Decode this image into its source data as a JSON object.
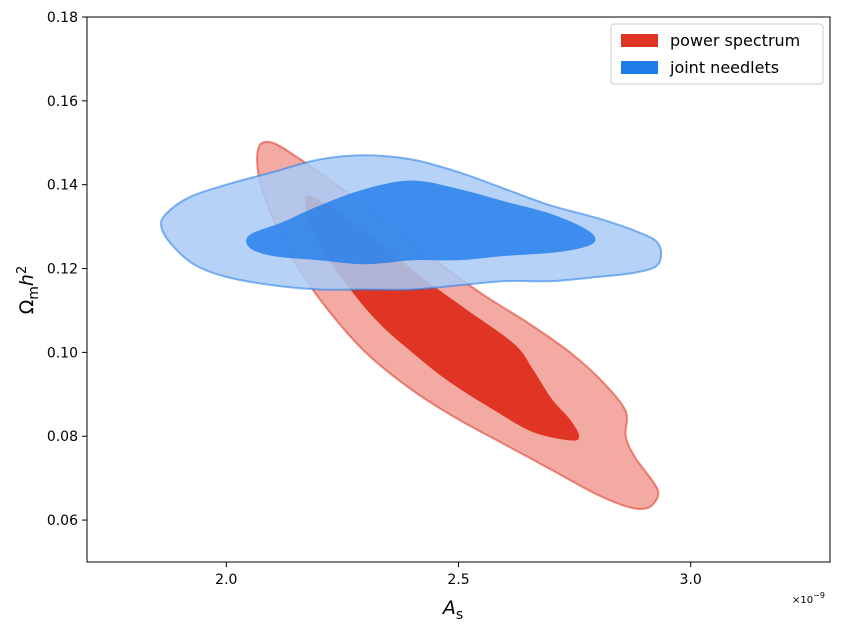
{
  "chart_data": {
    "type": "contour",
    "xlabel": "A",
    "xlabel_sub": "s",
    "ylabel": "Ω",
    "ylabel_sub": "m",
    "ylabel_var": "h",
    "ylabel_sup": "2",
    "x_multiplier": "×10",
    "x_multiplier_exp": "−9",
    "xlim": [
      1.7,
      3.3
    ],
    "ylim": [
      0.05,
      0.18
    ],
    "xticks": [
      2.0,
      2.5,
      3.0
    ],
    "xtick_labels": [
      "2.0",
      "2.5",
      "3.0"
    ],
    "yticks": [
      0.06,
      0.08,
      0.1,
      0.12,
      0.14,
      0.16,
      0.18
    ],
    "ytick_labels": [
      "0.06",
      "0.08",
      "0.10",
      "0.12",
      "0.14",
      "0.16",
      "0.18"
    ],
    "grid": false,
    "legend_position": "top-right",
    "series": [
      {
        "name": "power spectrum",
        "color": "#e03424",
        "outer_color": "#f2aaa3",
        "contours": {
          "outer": [
            [
              2.07,
              0.149
            ],
            [
              2.1,
              0.15
            ],
            [
              2.16,
              0.146
            ],
            [
              2.25,
              0.139
            ],
            [
              2.35,
              0.131
            ],
            [
              2.45,
              0.122
            ],
            [
              2.55,
              0.114
            ],
            [
              2.65,
              0.107
            ],
            [
              2.74,
              0.1
            ],
            [
              2.81,
              0.093
            ],
            [
              2.86,
              0.086
            ],
            [
              2.86,
              0.08
            ],
            [
              2.88,
              0.075
            ],
            [
              2.92,
              0.069
            ],
            [
              2.93,
              0.066
            ],
            [
              2.91,
              0.063
            ],
            [
              2.87,
              0.063
            ],
            [
              2.8,
              0.066
            ],
            [
              2.7,
              0.072
            ],
            [
              2.6,
              0.078
            ],
            [
              2.5,
              0.084
            ],
            [
              2.4,
              0.091
            ],
            [
              2.3,
              0.1
            ],
            [
              2.22,
              0.11
            ],
            [
              2.15,
              0.121
            ],
            [
              2.1,
              0.132
            ],
            [
              2.07,
              0.142
            ]
          ],
          "inner": [
            [
              2.17,
              0.137
            ],
            [
              2.22,
              0.135
            ],
            [
              2.32,
              0.127
            ],
            [
              2.42,
              0.118
            ],
            [
              2.52,
              0.11
            ],
            [
              2.62,
              0.102
            ],
            [
              2.66,
              0.096
            ],
            [
              2.7,
              0.089
            ],
            [
              2.74,
              0.084
            ],
            [
              2.76,
              0.08
            ],
            [
              2.74,
              0.079
            ],
            [
              2.66,
              0.081
            ],
            [
              2.58,
              0.086
            ],
            [
              2.48,
              0.093
            ],
            [
              2.4,
              0.1
            ],
            [
              2.32,
              0.108
            ],
            [
              2.24,
              0.119
            ],
            [
              2.19,
              0.128
            ]
          ]
        }
      },
      {
        "name": "joint needlets",
        "color": "#1f7ceb",
        "outer_color": "#a9cbf6",
        "contours": {
          "outer": [
            [
              1.87,
              0.133
            ],
            [
              1.92,
              0.137
            ],
            [
              2.0,
              0.14
            ],
            [
              2.1,
              0.143
            ],
            [
              2.2,
              0.146
            ],
            [
              2.3,
              0.147
            ],
            [
              2.4,
              0.146
            ],
            [
              2.5,
              0.143
            ],
            [
              2.6,
              0.139
            ],
            [
              2.7,
              0.135
            ],
            [
              2.8,
              0.132
            ],
            [
              2.88,
              0.129
            ],
            [
              2.93,
              0.126
            ],
            [
              2.93,
              0.121
            ],
            [
              2.88,
              0.119
            ],
            [
              2.8,
              0.118
            ],
            [
              2.7,
              0.117
            ],
            [
              2.6,
              0.117
            ],
            [
              2.5,
              0.116
            ],
            [
              2.4,
              0.115
            ],
            [
              2.3,
              0.115
            ],
            [
              2.2,
              0.115
            ],
            [
              2.1,
              0.116
            ],
            [
              2.0,
              0.118
            ],
            [
              1.93,
              0.121
            ],
            [
              1.88,
              0.126
            ],
            [
              1.86,
              0.13
            ]
          ],
          "inner": [
            [
              2.05,
              0.128
            ],
            [
              2.12,
              0.131
            ],
            [
              2.2,
              0.135
            ],
            [
              2.3,
              0.139
            ],
            [
              2.4,
              0.141
            ],
            [
              2.5,
              0.139
            ],
            [
              2.6,
              0.136
            ],
            [
              2.7,
              0.133
            ],
            [
              2.78,
              0.129
            ],
            [
              2.79,
              0.126
            ],
            [
              2.72,
              0.124
            ],
            [
              2.6,
              0.123
            ],
            [
              2.5,
              0.122
            ],
            [
              2.4,
              0.122
            ],
            [
              2.3,
              0.121
            ],
            [
              2.2,
              0.122
            ],
            [
              2.1,
              0.123
            ],
            [
              2.05,
              0.125
            ]
          ]
        }
      }
    ]
  }
}
